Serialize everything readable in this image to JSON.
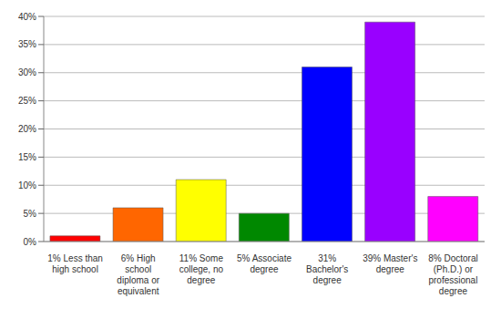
{
  "chart_data": {
    "type": "bar",
    "categories": [
      "1% Less than high school",
      "6% High school diploma or equivalent",
      "11% Some college, no degree",
      "5% Associate degree",
      "31% Bachelor's degree",
      "39% Master's degree",
      "8% Doctoral (Ph.D.) or professional degree"
    ],
    "values": [
      1,
      6,
      11,
      5,
      31,
      39,
      8
    ],
    "colors": [
      "#ff0000",
      "#ff6600",
      "#ffff00",
      "#008800",
      "#0000ff",
      "#9900ff",
      "#ff00ff"
    ],
    "ylim": [
      0,
      40
    ],
    "yticks": [
      {
        "value": 0,
        "label": "0%"
      },
      {
        "value": 5,
        "label": "5%"
      },
      {
        "value": 10,
        "label": "10%"
      },
      {
        "value": 15,
        "label": "15%"
      },
      {
        "value": 20,
        "label": "20%"
      },
      {
        "value": 25,
        "label": "25%"
      },
      {
        "value": 30,
        "label": "30%"
      },
      {
        "value": 35,
        "label": "35%"
      },
      {
        "value": 40,
        "label": "40%"
      }
    ],
    "grid": true
  }
}
